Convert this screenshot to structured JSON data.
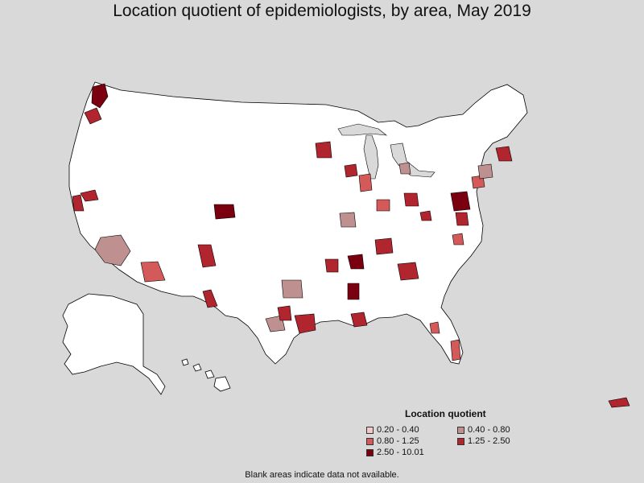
{
  "title": "Location quotient of epidemiologists, by area, May 2019",
  "legend": {
    "title": "Location quotient",
    "items": [
      {
        "label": "0.20 - 0.40",
        "color": "#f2c8c8"
      },
      {
        "label": "0.40 - 0.80",
        "color": "#bf9090"
      },
      {
        "label": "0.80 - 1.25",
        "color": "#d45a5a"
      },
      {
        "label": "1.25 - 2.50",
        "color": "#b0252e"
      },
      {
        "label": "2.50 - 10.01",
        "color": "#7a0010"
      }
    ]
  },
  "footnote": "Blank areas indicate data not available.",
  "colors": {
    "background": "#d9d9d9",
    "land": "#ffffff",
    "border": "#000000",
    "q_0_2": "#f2c8c8",
    "q_0_4": "#bf9090",
    "q_0_8": "#d45a5a",
    "q_1_25": "#b0252e",
    "q_2_5": "#7a0010"
  }
}
